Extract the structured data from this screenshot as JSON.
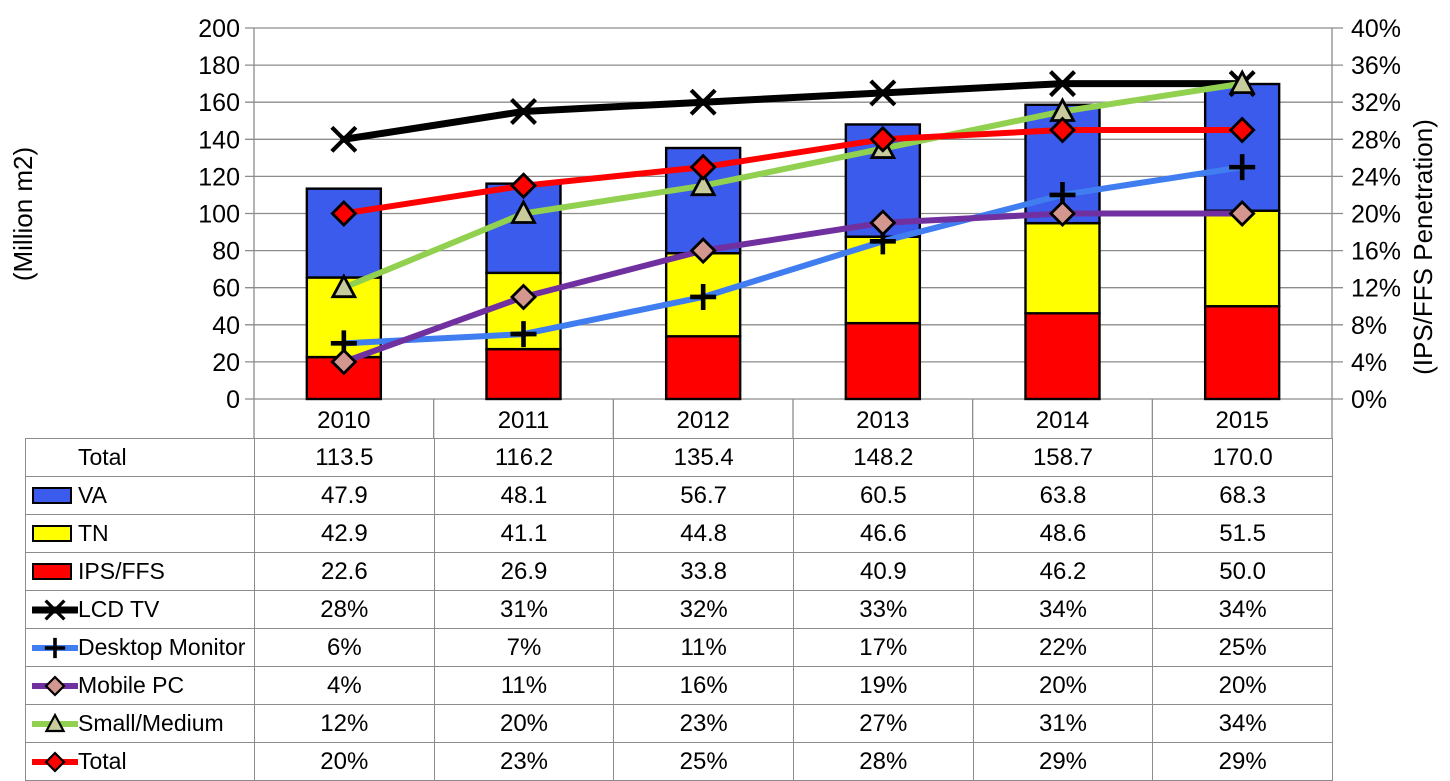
{
  "chart_data": {
    "type": "combo-stacked-bar-line",
    "categories": [
      "2010",
      "2011",
      "2012",
      "2013",
      "2014",
      "2015"
    ],
    "left_axis": {
      "title": "(Million m2)",
      "min": 0,
      "max": 200,
      "step": 20
    },
    "right_axis": {
      "title": "(IPS/FFS Penetration)",
      "min": 0,
      "max": 40,
      "step": 4,
      "suffix": "%"
    },
    "grid": "horizontal",
    "bar_series": [
      {
        "name": "IPS/FFS",
        "color": "#FF0000",
        "values": [
          22.6,
          26.9,
          33.8,
          40.9,
          46.2,
          50.0
        ]
      },
      {
        "name": "TN",
        "color": "#FFFF00",
        "values": [
          42.9,
          41.1,
          44.8,
          46.6,
          48.6,
          51.5
        ]
      },
      {
        "name": "VA",
        "color": "#3A5BEC",
        "values": [
          47.9,
          48.1,
          56.7,
          60.5,
          63.8,
          68.3
        ]
      }
    ],
    "line_series": [
      {
        "name": "LCD TV",
        "color": "#000000",
        "width": 7,
        "marker": "x",
        "marker_fill": "#000000",
        "values": [
          28,
          31,
          32,
          33,
          34,
          34
        ]
      },
      {
        "name": "Desktop Monitor",
        "color": "#3F7DF0",
        "width": 6,
        "marker": "plus",
        "marker_fill": "#000000",
        "values": [
          6,
          7,
          11,
          17,
          22,
          25
        ]
      },
      {
        "name": "Mobile PC",
        "color": "#7030A0",
        "width": 6,
        "marker": "diamond",
        "marker_fill": "#D49790",
        "values": [
          4,
          11,
          16,
          19,
          20,
          20
        ]
      },
      {
        "name": "Small/Medium",
        "color": "#92D050",
        "width": 6,
        "marker": "triangle",
        "marker_fill": "#C8CC9D",
        "values": [
          12,
          20,
          23,
          27,
          31,
          34
        ]
      },
      {
        "name": "Total",
        "color": "#FF0000",
        "width": 6,
        "marker": "diamond",
        "marker_fill": "#FF0000",
        "values": [
          20,
          23,
          25,
          28,
          29,
          29
        ]
      }
    ]
  },
  "table": {
    "rows": [
      {
        "label": "Total",
        "swatch": "none",
        "values": [
          "113.5",
          "116.2",
          "135.4",
          "148.2",
          "158.7",
          "170.0"
        ]
      },
      {
        "label": "VA",
        "swatch": "bar",
        "color": "#3A5BEC",
        "values": [
          "47.9",
          "48.1",
          "56.7",
          "60.5",
          "63.8",
          "68.3"
        ]
      },
      {
        "label": "TN",
        "swatch": "bar",
        "color": "#FFFF00",
        "values": [
          "42.9",
          "41.1",
          "44.8",
          "46.6",
          "48.6",
          "51.5"
        ]
      },
      {
        "label": "IPS/FFS",
        "swatch": "bar",
        "color": "#FF0000",
        "values": [
          "22.6",
          "26.9",
          "33.8",
          "40.9",
          "46.2",
          "50.0"
        ]
      },
      {
        "label": "LCD TV",
        "swatch": "line",
        "color": "#000000",
        "line_width": 7,
        "marker": "x",
        "marker_fill": "#000000",
        "values": [
          "28%",
          "31%",
          "32%",
          "33%",
          "34%",
          "34%"
        ]
      },
      {
        "label": "Desktop Monitor",
        "swatch": "line",
        "color": "#3F7DF0",
        "line_width": 6,
        "marker": "plus",
        "marker_fill": "#000000",
        "values": [
          "6%",
          "7%",
          "11%",
          "17%",
          "22%",
          "25%"
        ]
      },
      {
        "label": "Mobile PC",
        "swatch": "line",
        "color": "#7030A0",
        "line_width": 6,
        "marker": "diamond",
        "marker_fill": "#D49790",
        "values": [
          "4%",
          "11%",
          "16%",
          "19%",
          "20%",
          "20%"
        ]
      },
      {
        "label": "Small/Medium",
        "swatch": "line",
        "color": "#92D050",
        "line_width": 6,
        "marker": "triangle",
        "marker_fill": "#C8CC9D",
        "values": [
          "12%",
          "20%",
          "23%",
          "27%",
          "31%",
          "34%"
        ]
      },
      {
        "label": "Total",
        "swatch": "line",
        "color": "#FF0000",
        "line_width": 6,
        "marker": "diamond",
        "marker_fill": "#FF0000",
        "values": [
          "20%",
          "23%",
          "25%",
          "28%",
          "29%",
          "29%"
        ]
      }
    ]
  }
}
